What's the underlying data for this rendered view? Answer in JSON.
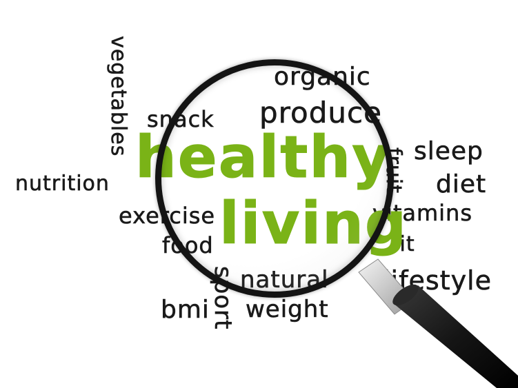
{
  "words": {
    "vegetables": "vegetables",
    "snack": "snack",
    "organic": "organic",
    "produce": "produce",
    "healthy": "healthy",
    "living": "living",
    "fruit": "fruit",
    "sleep": "sleep",
    "diet": "diet",
    "vitamins": "vitamins",
    "nutrition": "nutrition",
    "exercise": "exercise",
    "food": "food",
    "fit": "fit",
    "sport": "sport",
    "natural": "natural",
    "lifestyle": "lifestyle",
    "bmi": "bmi",
    "weight": "weight"
  },
  "colors": {
    "text_dark": "#1a1a1a",
    "accent_green": "#7ab317",
    "lens_rim": "#141414",
    "handle": "#151515"
  },
  "icons": {
    "magnifier": "magnifying-glass-icon"
  }
}
